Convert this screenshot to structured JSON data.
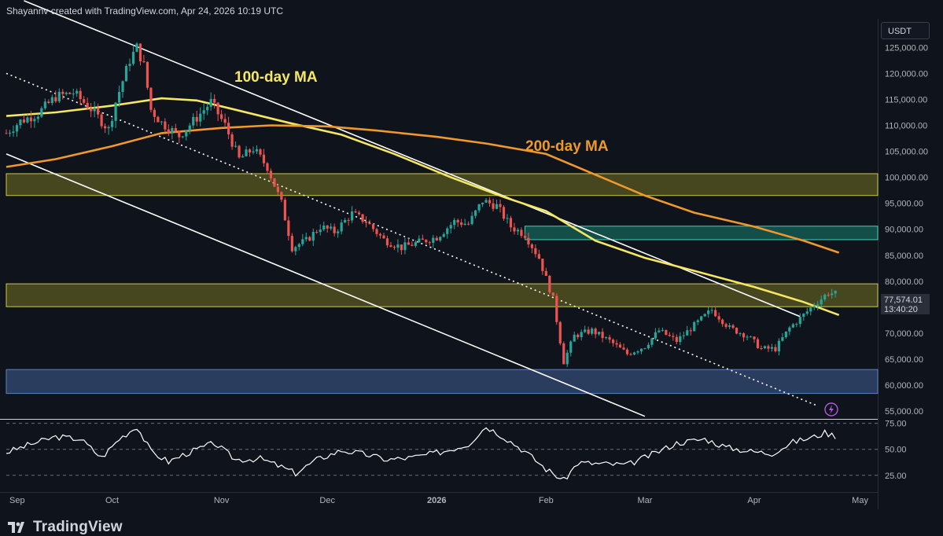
{
  "header": {
    "attribution": "Shayannv created with TradingView.com, Apr 24, 2026 10:19 UTC"
  },
  "brand": {
    "name": "TradingView"
  },
  "price_scale": {
    "unit": "USDT",
    "last_price": "77,574.01",
    "countdown": "13:40:20"
  },
  "annotations": {
    "ma100": "100-day MA",
    "ma200": "200-day MA"
  },
  "colors": {
    "background": "#0f131c",
    "ma100": "#f5e663",
    "ma200": "#f0992a",
    "candle_up": "#26a69a",
    "candle_down": "#ef5350",
    "zone_yellow": "#8a8a2e",
    "zone_teal": "#1f8f80",
    "zone_blue": "#3c5a8a",
    "rsi_line": "#ffffff",
    "channel": "#ffffff"
  },
  "chart_data": {
    "type": "candlestick",
    "symbol_quote": "USDT",
    "x_axis_labels": [
      "Sep",
      "Oct",
      "Nov",
      "Dec",
      "2026",
      "Feb",
      "Mar",
      "Apr",
      "May"
    ],
    "y_axis_labels": [
      "55,000.00",
      "60,000.00",
      "65,000.00",
      "70,000.00",
      "75,000.00",
      "80,000.00",
      "85,000.00",
      "90,000.00",
      "95,000.00",
      "100,000.00",
      "105,000.00",
      "110,000.00",
      "115,000.00",
      "120,000.00",
      "125,000.00"
    ],
    "ylim": [
      53500,
      130500
    ],
    "rsi_axis_labels": [
      "75.00",
      "50.00",
      "25.00"
    ],
    "rsi_ylim": [
      15,
      77
    ],
    "date_range": [
      "2025-09-01",
      "2026-05-06"
    ],
    "zones": [
      {
        "kind": "resistance",
        "from_date": "2025-09-01",
        "to_date": "2026-05-06",
        "low": 96500,
        "high": 100700,
        "color": "yellow"
      },
      {
        "kind": "supply",
        "from_date": "2026-01-26",
        "to_date": "2026-05-06",
        "low": 88000,
        "high": 90600,
        "color": "teal"
      },
      {
        "kind": "pivot",
        "from_date": "2025-09-01",
        "to_date": "2026-05-06",
        "low": 75100,
        "high": 79500,
        "color": "yellow"
      },
      {
        "kind": "support",
        "from_date": "2025-09-01",
        "to_date": "2026-05-06",
        "low": 58400,
        "high": 63000,
        "color": "blue"
      }
    ],
    "trendlines": [
      {
        "name": "channel-upper",
        "style": "solid",
        "points": [
          [
            "2025-09-06",
            134000
          ],
          [
            "2026-04-14",
            73200
          ]
        ]
      },
      {
        "name": "channel-lower",
        "style": "solid",
        "points": [
          [
            "2025-09-01",
            104500
          ],
          [
            "2026-03-01",
            54000
          ]
        ]
      },
      {
        "name": "dotted-support",
        "style": "dotted",
        "points": [
          [
            "2025-09-01",
            120000
          ],
          [
            "2026-04-19",
            56000
          ]
        ]
      }
    ],
    "series": [
      {
        "name": "100-day MA",
        "style": "line",
        "color": "ma100",
        "points": [
          [
            "2025-09-01",
            111800
          ],
          [
            "2025-09-15",
            112500
          ],
          [
            "2025-10-01",
            113800
          ],
          [
            "2025-10-15",
            115200
          ],
          [
            "2025-10-25",
            114800
          ],
          [
            "2025-11-05",
            113000
          ],
          [
            "2025-11-20",
            110500
          ],
          [
            "2025-12-05",
            108200
          ],
          [
            "2025-12-20",
            104500
          ],
          [
            "2026-01-05",
            100000
          ],
          [
            "2026-01-20",
            96200
          ],
          [
            "2026-02-01",
            93500
          ],
          [
            "2026-02-15",
            87800
          ],
          [
            "2026-03-01",
            84500
          ],
          [
            "2026-03-15",
            82000
          ],
          [
            "2026-04-01",
            78900
          ],
          [
            "2026-04-15",
            76000
          ],
          [
            "2026-04-25",
            73500
          ]
        ]
      },
      {
        "name": "200-day MA",
        "style": "line",
        "color": "ma200",
        "points": [
          [
            "2025-09-01",
            102000
          ],
          [
            "2025-09-15",
            103500
          ],
          [
            "2025-10-01",
            106000
          ],
          [
            "2025-10-15",
            108500
          ],
          [
            "2025-11-01",
            109500
          ],
          [
            "2025-11-15",
            110000
          ],
          [
            "2025-12-01",
            109800
          ],
          [
            "2025-12-15",
            109000
          ],
          [
            "2026-01-01",
            107800
          ],
          [
            "2026-01-15",
            106500
          ],
          [
            "2026-02-01",
            104500
          ],
          [
            "2026-02-15",
            100500
          ],
          [
            "2026-03-01",
            96500
          ],
          [
            "2026-03-15",
            93200
          ],
          [
            "2026-04-01",
            90500
          ],
          [
            "2026-04-15",
            87800
          ],
          [
            "2026-04-25",
            85500
          ]
        ]
      },
      {
        "name": "price",
        "style": "candle",
        "points": [
          [
            "2025-09-01",
            108500
          ],
          [
            "2025-09-05",
            110800
          ],
          [
            "2025-09-10",
            112300
          ],
          [
            "2025-09-15",
            115500
          ],
          [
            "2025-09-20",
            116300
          ],
          [
            "2025-09-25",
            113200
          ],
          [
            "2025-09-30",
            109200
          ],
          [
            "2025-10-02",
            114500
          ],
          [
            "2025-10-06",
            122600
          ],
          [
            "2025-10-08",
            125000
          ],
          [
            "2025-10-10",
            121500
          ],
          [
            "2025-10-12",
            113000
          ],
          [
            "2025-10-15",
            110500
          ],
          [
            "2025-10-20",
            108000
          ],
          [
            "2025-10-25",
            111500
          ],
          [
            "2025-10-29",
            114500
          ],
          [
            "2025-11-02",
            110000
          ],
          [
            "2025-11-06",
            103500
          ],
          [
            "2025-11-10",
            105500
          ],
          [
            "2025-11-14",
            102000
          ],
          [
            "2025-11-18",
            95000
          ],
          [
            "2025-11-21",
            86500
          ],
          [
            "2025-11-25",
            87800
          ],
          [
            "2025-11-29",
            90500
          ],
          [
            "2025-12-03",
            89500
          ],
          [
            "2025-12-08",
            93000
          ],
          [
            "2025-12-12",
            91500
          ],
          [
            "2025-12-17",
            88000
          ],
          [
            "2025-12-22",
            86500
          ],
          [
            "2025-12-27",
            87500
          ],
          [
            "2026-01-01",
            88500
          ],
          [
            "2026-01-06",
            91500
          ],
          [
            "2026-01-10",
            91000
          ],
          [
            "2026-01-14",
            95500
          ],
          [
            "2026-01-18",
            94500
          ],
          [
            "2026-01-22",
            90500
          ],
          [
            "2026-01-26",
            89000
          ],
          [
            "2026-01-30",
            84500
          ],
          [
            "2026-02-03",
            76500
          ],
          [
            "2026-02-06",
            64500
          ],
          [
            "2026-02-09",
            69500
          ],
          [
            "2026-02-14",
            70500
          ],
          [
            "2026-02-19",
            68500
          ],
          [
            "2026-02-24",
            66000
          ],
          [
            "2026-03-01",
            67500
          ],
          [
            "2026-03-05",
            70500
          ],
          [
            "2026-03-10",
            68500
          ],
          [
            "2026-03-15",
            71500
          ],
          [
            "2026-03-20",
            74500
          ],
          [
            "2026-03-25",
            71000
          ],
          [
            "2026-03-30",
            69500
          ],
          [
            "2026-04-03",
            67000
          ],
          [
            "2026-04-07",
            67000
          ],
          [
            "2026-04-11",
            71000
          ],
          [
            "2026-04-15",
            73500
          ],
          [
            "2026-04-18",
            75500
          ],
          [
            "2026-04-22",
            77800
          ],
          [
            "2026-04-24",
            77574
          ]
        ]
      },
      {
        "name": "RSI",
        "style": "line",
        "color": "rsi_line",
        "points": [
          [
            "2025-09-01",
            47
          ],
          [
            "2025-09-08",
            55
          ],
          [
            "2025-09-15",
            62
          ],
          [
            "2025-09-22",
            60
          ],
          [
            "2025-09-28",
            42
          ],
          [
            "2025-10-03",
            60
          ],
          [
            "2025-10-08",
            72
          ],
          [
            "2025-10-12",
            48
          ],
          [
            "2025-10-17",
            38
          ],
          [
            "2025-10-22",
            46
          ],
          [
            "2025-10-30",
            56
          ],
          [
            "2025-11-05",
            40
          ],
          [
            "2025-11-12",
            41
          ],
          [
            "2025-11-18",
            33
          ],
          [
            "2025-11-22",
            27
          ],
          [
            "2025-11-28",
            40
          ],
          [
            "2025-12-05",
            49
          ],
          [
            "2025-12-12",
            45
          ],
          [
            "2025-12-18",
            40
          ],
          [
            "2025-12-25",
            42
          ],
          [
            "2026-01-03",
            48
          ],
          [
            "2026-01-10",
            55
          ],
          [
            "2026-01-15",
            72
          ],
          [
            "2026-01-20",
            62
          ],
          [
            "2026-01-26",
            48
          ],
          [
            "2026-02-01",
            31
          ],
          [
            "2026-02-06",
            20
          ],
          [
            "2026-02-10",
            37
          ],
          [
            "2026-02-17",
            36
          ],
          [
            "2026-02-24",
            35
          ],
          [
            "2026-03-03",
            45
          ],
          [
            "2026-03-10",
            56
          ],
          [
            "2026-03-18",
            60
          ],
          [
            "2026-03-24",
            52
          ],
          [
            "2026-03-31",
            48
          ],
          [
            "2026-04-06",
            46
          ],
          [
            "2026-04-12",
            57
          ],
          [
            "2026-04-18",
            62
          ],
          [
            "2026-04-21",
            66
          ],
          [
            "2026-04-24",
            63
          ]
        ]
      }
    ]
  }
}
